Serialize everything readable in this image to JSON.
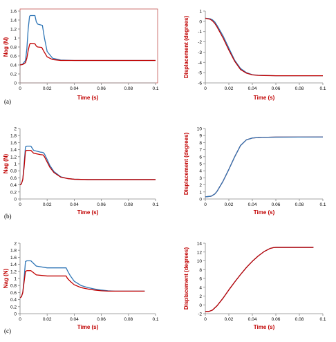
{
  "figure": {
    "panel_labels": [
      "(a)",
      "(b)",
      "(c)"
    ]
  },
  "colors": {
    "axis_title": "#c00000",
    "blue": "#2e75b6",
    "red": "#c00000",
    "axis": "#868686",
    "frame_a": "#c0504d"
  },
  "chart_data": [
    {
      "id": "a-left",
      "type": "line",
      "xlabel": "Time (s)",
      "ylabel": "Nag (N)",
      "xlim": [
        0,
        0.1
      ],
      "ylim": [
        0,
        1.6
      ],
      "xticks": [
        "0",
        "0.02",
        "0.04",
        "0.06",
        "0.08",
        "0.1"
      ],
      "yticks": [
        "0",
        "0.2",
        "0.4",
        "0.6",
        "0.8",
        "1",
        "1.2",
        "1.4",
        "1.6"
      ],
      "series": [
        {
          "color": "blue",
          "x": [
            0,
            0.002,
            0.004,
            0.005,
            0.006,
            0.007,
            0.0075,
            0.011,
            0.012,
            0.013,
            0.0165,
            0.018,
            0.02,
            0.024,
            0.03,
            0.04,
            0.1
          ],
          "y": [
            0.4,
            0.42,
            0.5,
            0.75,
            1.2,
            1.48,
            1.5,
            1.5,
            1.36,
            1.31,
            1.28,
            1.0,
            0.7,
            0.55,
            0.51,
            0.5,
            0.5
          ]
        },
        {
          "color": "red",
          "x": [
            0,
            0.002,
            0.004,
            0.005,
            0.006,
            0.007,
            0.0075,
            0.011,
            0.012,
            0.013,
            0.016,
            0.018,
            0.02,
            0.024,
            0.03,
            0.04,
            0.1
          ],
          "y": [
            0.4,
            0.41,
            0.45,
            0.55,
            0.72,
            0.85,
            0.88,
            0.87,
            0.82,
            0.8,
            0.79,
            0.68,
            0.58,
            0.52,
            0.5,
            0.5,
            0.5
          ]
        }
      ]
    },
    {
      "id": "a-right",
      "type": "line",
      "xlabel": "Time (s)",
      "ylabel": "Displacement (degrees)",
      "xlim": [
        0,
        0.1
      ],
      "ylim": [
        -6,
        1
      ],
      "xticks": [
        "0",
        "0.02",
        "0.04",
        "0.06",
        "0.08",
        "0.1"
      ],
      "yticks": [
        "-6",
        "-5",
        "-4",
        "-3",
        "-2",
        "-1",
        "0",
        "1"
      ],
      "series": [
        {
          "color": "blue",
          "x": [
            0,
            0.004,
            0.006,
            0.008,
            0.01,
            0.015,
            0.02,
            0.025,
            0.03,
            0.035,
            0.04,
            0.045,
            0.05,
            0.06,
            0.1
          ],
          "y": [
            0.3,
            0.25,
            0.15,
            -0.05,
            -0.4,
            -1.4,
            -2.6,
            -3.8,
            -4.6,
            -5.0,
            -5.2,
            -5.25,
            -5.27,
            -5.3,
            -5.3
          ]
        },
        {
          "color": "red",
          "x": [
            0,
            0.004,
            0.006,
            0.008,
            0.01,
            0.015,
            0.02,
            0.025,
            0.03,
            0.035,
            0.04,
            0.045,
            0.05,
            0.06,
            0.1
          ],
          "y": [
            0.3,
            0.2,
            0.05,
            -0.2,
            -0.55,
            -1.6,
            -2.8,
            -3.9,
            -4.7,
            -5.05,
            -5.22,
            -5.27,
            -5.28,
            -5.3,
            -5.3
          ]
        }
      ]
    },
    {
      "id": "b-left",
      "type": "line",
      "xlabel": "Time (s)",
      "ylabel": "Nag  (N)",
      "xlim": [
        0,
        0.1
      ],
      "ylim": [
        0,
        2
      ],
      "xticks": [
        "0",
        "0.02",
        "0.04",
        "0.06",
        "0.08",
        "0.1"
      ],
      "yticks": [
        "0",
        "0.2",
        "0.4",
        "0.6",
        "0.8",
        "1",
        "1.2",
        "1.4",
        "1.6",
        "1.8",
        "2"
      ],
      "series": [
        {
          "color": "blue",
          "x": [
            0,
            0.001,
            0.002,
            0.003,
            0.004,
            0.005,
            0.008,
            0.01,
            0.015,
            0.017,
            0.018,
            0.02,
            0.022,
            0.025,
            0.03,
            0.035,
            0.04,
            0.05,
            0.1
          ],
          "y": [
            0.4,
            0.43,
            0.55,
            1.0,
            1.48,
            1.5,
            1.5,
            1.38,
            1.33,
            1.32,
            1.28,
            1.12,
            0.95,
            0.78,
            0.63,
            0.58,
            0.56,
            0.55,
            0.55
          ]
        },
        {
          "color": "red",
          "x": [
            0,
            0.001,
            0.002,
            0.003,
            0.004,
            0.005,
            0.008,
            0.01,
            0.015,
            0.017,
            0.018,
            0.02,
            0.022,
            0.025,
            0.03,
            0.035,
            0.04,
            0.05,
            0.1
          ],
          "y": [
            0.4,
            0.43,
            0.55,
            0.9,
            1.36,
            1.38,
            1.38,
            1.3,
            1.26,
            1.25,
            1.2,
            1.05,
            0.9,
            0.75,
            0.62,
            0.58,
            0.56,
            0.55,
            0.55
          ]
        }
      ]
    },
    {
      "id": "b-right",
      "type": "line",
      "xlabel": "Time (s)",
      "ylabel": "Displacement (degrees)",
      "xlim": [
        0,
        0.1
      ],
      "ylim": [
        0,
        10
      ],
      "xticks": [
        "0",
        "0.02",
        "0.04",
        "0.06",
        "0.08",
        "0.1"
      ],
      "yticks": [
        "0",
        "1",
        "2",
        "3",
        "4",
        "5",
        "6",
        "7",
        "8",
        "9",
        "10"
      ],
      "series": [
        {
          "color": "red",
          "x": [
            0,
            0.005,
            0.008,
            0.01,
            0.015,
            0.02,
            0.025,
            0.03,
            0.035,
            0.04,
            0.045,
            0.05,
            0.06,
            0.1
          ],
          "y": [
            0.3,
            0.4,
            0.7,
            1.1,
            2.5,
            4.2,
            6.0,
            7.6,
            8.4,
            8.65,
            8.72,
            8.75,
            8.78,
            8.8
          ]
        },
        {
          "color": "blue",
          "x": [
            0,
            0.005,
            0.008,
            0.01,
            0.015,
            0.02,
            0.025,
            0.03,
            0.035,
            0.04,
            0.045,
            0.05,
            0.06,
            0.1
          ],
          "y": [
            0.3,
            0.4,
            0.7,
            1.1,
            2.5,
            4.2,
            6.0,
            7.6,
            8.4,
            8.65,
            8.72,
            8.75,
            8.78,
            8.8
          ]
        }
      ]
    },
    {
      "id": "c-left",
      "type": "line",
      "xlabel": "Time (s)",
      "ylabel": "Nag  (N)",
      "xlim": [
        0,
        0.1
      ],
      "ylim": [
        0,
        2
      ],
      "xticks": [
        "0",
        "0.02",
        "0.04",
        "0.06",
        "0.08",
        "0.1"
      ],
      "yticks": [
        "0",
        "0.2",
        "0.4",
        "0.6",
        "0.8",
        "1",
        "1.2",
        "1.4",
        "1.6",
        "1.8",
        "2"
      ],
      "series": [
        {
          "color": "blue",
          "x": [
            0,
            0.001,
            0.002,
            0.003,
            0.004,
            0.005,
            0.008,
            0.012,
            0.02,
            0.034,
            0.035,
            0.037,
            0.04,
            0.045,
            0.05,
            0.055,
            0.06,
            0.065,
            0.07,
            0.092
          ],
          "y": [
            0.45,
            0.48,
            0.6,
            1.0,
            1.48,
            1.5,
            1.5,
            1.35,
            1.3,
            1.3,
            1.22,
            1.08,
            0.92,
            0.8,
            0.74,
            0.7,
            0.67,
            0.65,
            0.64,
            0.64
          ]
        },
        {
          "color": "red",
          "x": [
            0,
            0.001,
            0.002,
            0.003,
            0.004,
            0.005,
            0.008,
            0.012,
            0.02,
            0.034,
            0.035,
            0.037,
            0.04,
            0.045,
            0.05,
            0.055,
            0.06,
            0.065,
            0.07,
            0.092
          ],
          "y": [
            0.45,
            0.48,
            0.6,
            0.9,
            1.2,
            1.22,
            1.22,
            1.1,
            1.07,
            1.07,
            1.0,
            0.92,
            0.82,
            0.74,
            0.7,
            0.67,
            0.65,
            0.64,
            0.64,
            0.64
          ]
        }
      ]
    },
    {
      "id": "c-right",
      "type": "line",
      "xlabel": "Time (s)",
      "ylabel": "Displacement (degrees)",
      "xlim": [
        0,
        0.1
      ],
      "ylim": [
        -2,
        14
      ],
      "xticks": [
        "0",
        "0.02",
        "0.04",
        "0.06",
        "0.08",
        "0.1"
      ],
      "yticks": [
        "-2",
        "0",
        "2",
        "4",
        "6",
        "8",
        "10",
        "12",
        "14"
      ],
      "series": [
        {
          "color": "blue",
          "x": [
            0,
            0.003,
            0.006,
            0.01,
            0.015,
            0.02,
            0.025,
            0.03,
            0.035,
            0.04,
            0.045,
            0.05,
            0.055,
            0.058,
            0.06,
            0.07,
            0.092
          ],
          "y": [
            -1.5,
            -1.5,
            -1.2,
            -0.2,
            1.5,
            3.4,
            5.2,
            6.9,
            8.5,
            9.9,
            11.1,
            12.1,
            12.8,
            13.0,
            13.05,
            13.05,
            13.05
          ]
        },
        {
          "color": "red",
          "x": [
            0,
            0.003,
            0.006,
            0.01,
            0.015,
            0.02,
            0.025,
            0.03,
            0.035,
            0.04,
            0.045,
            0.05,
            0.055,
            0.058,
            0.06,
            0.07,
            0.092
          ],
          "y": [
            -1.5,
            -1.5,
            -1.2,
            -0.2,
            1.5,
            3.4,
            5.2,
            6.9,
            8.5,
            9.9,
            11.1,
            12.1,
            12.8,
            13.0,
            13.05,
            13.05,
            13.05
          ]
        }
      ]
    }
  ]
}
